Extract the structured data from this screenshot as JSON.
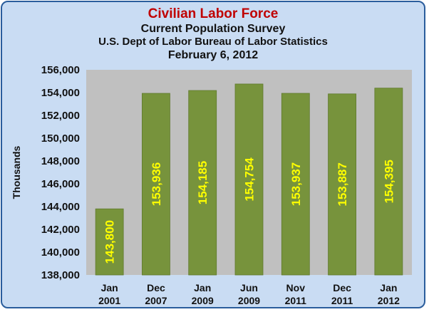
{
  "chart_data": {
    "type": "bar",
    "title": "Civilian Labor Force",
    "subtitle_lines": [
      "Current Population Survey",
      "U.S. Dept of Labor Bureau of Labor Statistics",
      "February 6, 2012"
    ],
    "ylabel": "Thousands",
    "xlabel": "",
    "ylim": [
      138000,
      156000
    ],
    "yticks": [
      "138,000",
      "140,000",
      "142,000",
      "144,000",
      "146,000",
      "148,000",
      "150,000",
      "152,000",
      "154,000",
      "156,000"
    ],
    "ytick_values": [
      138000,
      140000,
      142000,
      144000,
      146000,
      148000,
      150000,
      152000,
      154000,
      156000
    ],
    "categories": [
      [
        "Jan",
        "2001"
      ],
      [
        "Dec",
        "2007"
      ],
      [
        "Jan",
        "2009"
      ],
      [
        "Jun",
        "2009"
      ],
      [
        "Nov",
        "2011"
      ],
      [
        "Dec",
        "2011"
      ],
      [
        "Jan",
        "2012"
      ]
    ],
    "values": [
      143800,
      153936,
      154185,
      154754,
      153937,
      153887,
      154395
    ],
    "value_labels": [
      "143,800",
      "153,936",
      "154,185",
      "154,754",
      "153,937",
      "153,887",
      "154,395"
    ],
    "grid": false,
    "legend": "none",
    "colors": {
      "bar": "#77933c",
      "bar_edge": "#5f7a2c",
      "value_label": "#ffff00",
      "plot_background": "#c0c0c0",
      "chart_background": "#c9dcf3",
      "title": "#c00000",
      "border": "#2a5d9c"
    }
  }
}
